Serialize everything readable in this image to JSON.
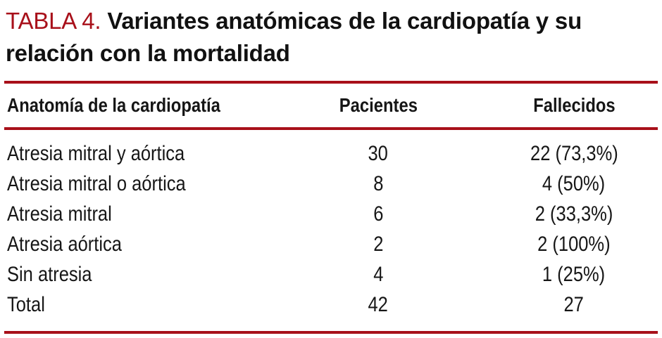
{
  "accent_color": "#a8101a",
  "title": {
    "label": "TABLA 4.",
    "text": "Variantes anatómicas de la cardiopatía y su relación con la mortalidad"
  },
  "table": {
    "columns": [
      "Anatomía de la cardiopatía",
      "Pacientes",
      "Fallecidos"
    ],
    "rows": [
      {
        "anatomy": "Atresia mitral y aórtica",
        "patients": "30",
        "deaths": "22 (73,3%)"
      },
      {
        "anatomy": "Atresia mitral o aórtica",
        "patients": "8",
        "deaths": "4 (50%)"
      },
      {
        "anatomy": "Atresia mitral",
        "patients": "6",
        "deaths": "2 (33,3%)"
      },
      {
        "anatomy": "Atresia aórtica",
        "patients": "2",
        "deaths": "2 (100%)"
      },
      {
        "anatomy": "Sin atresia",
        "patients": "4",
        "deaths": "1 (25%)"
      },
      {
        "anatomy": "Total",
        "patients": "42",
        "deaths": "27"
      }
    ]
  }
}
